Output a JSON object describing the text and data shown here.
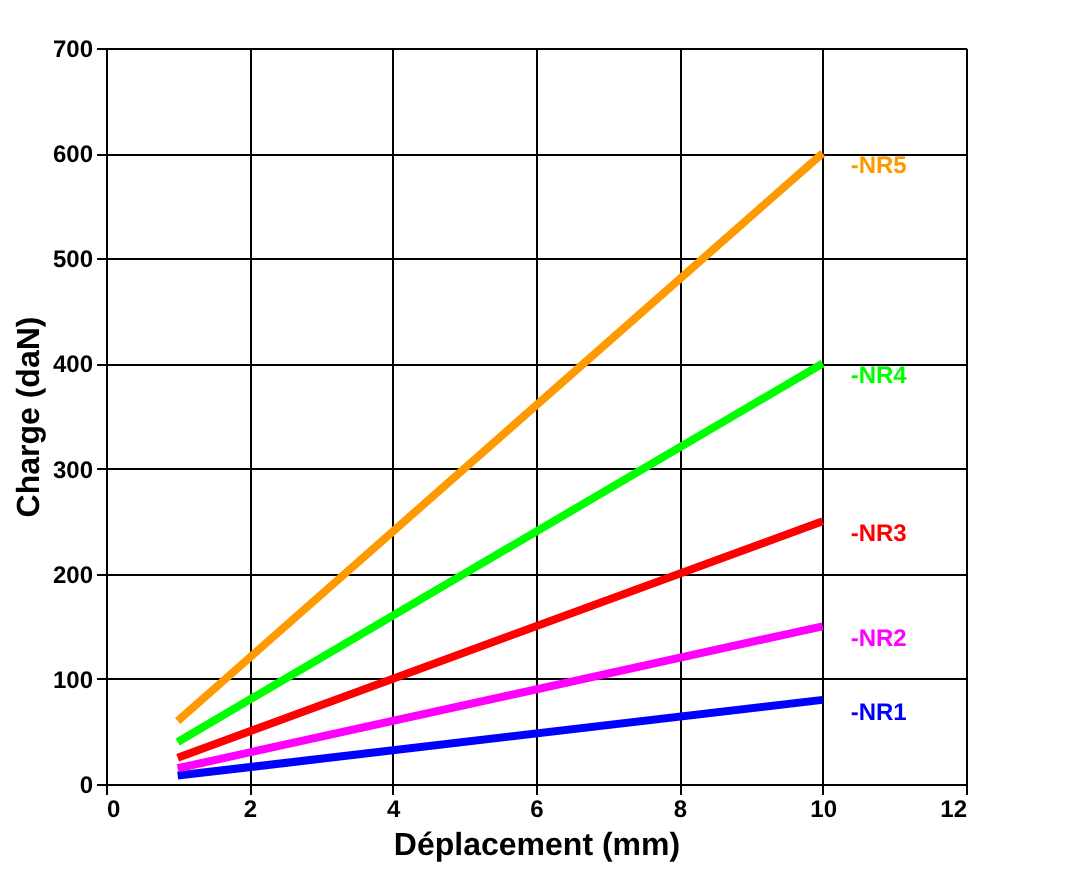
{
  "chart_data": {
    "type": "line",
    "xlabel": "Déplacement (mm)",
    "ylabel": "Charge (daN)",
    "x": [
      1,
      10
    ],
    "xlim": [
      0,
      12
    ],
    "xticks": [
      0,
      2,
      4,
      6,
      8,
      10,
      12
    ],
    "ylim": [
      0,
      700
    ],
    "yticks": [
      0,
      100,
      200,
      300,
      400,
      500,
      600,
      700
    ],
    "grid": true,
    "marker": "none",
    "line_style": "solid",
    "series": [
      {
        "name": "-NR1",
        "color": "#0000ff",
        "values": [
          8,
          80
        ]
      },
      {
        "name": "-NR2",
        "color": "#ff00ff",
        "values": [
          15,
          150
        ]
      },
      {
        "name": "-NR3",
        "color": "#ff0000",
        "values": [
          25,
          250
        ]
      },
      {
        "name": "-NR4",
        "color": "#00ff00",
        "values": [
          40,
          400
        ]
      },
      {
        "name": "-NR5",
        "color": "#ff9900",
        "values": [
          60,
          600
        ]
      }
    ]
  }
}
